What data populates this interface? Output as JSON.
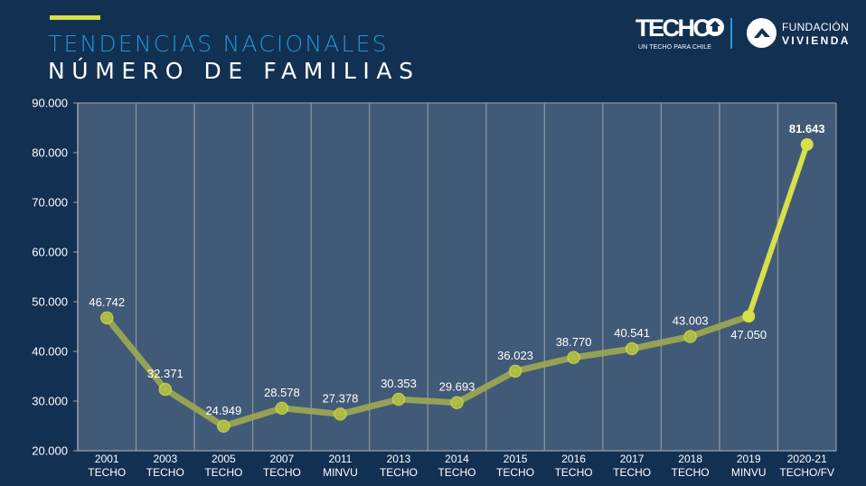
{
  "header": {
    "title_line1": "TENDENCIAS NACIONALES",
    "title_line2": "NÚMERO DE FAMILIAS",
    "accent_color": "#d7e04a",
    "title_color": "#2396d8"
  },
  "logos": {
    "techo": {
      "name": "TECHO",
      "tagline": "UN TECHO PARA CHILE"
    },
    "fundacion": {
      "line1": "FUNDACIÓN",
      "line2": "VIVIENDA"
    }
  },
  "chart_data": {
    "type": "line",
    "title": "Número de familias",
    "xlabel": "",
    "ylabel": "",
    "ylim": [
      20000,
      90000
    ],
    "yticks": [
      20000,
      30000,
      40000,
      50000,
      60000,
      70000,
      80000,
      90000
    ],
    "ytick_labels": [
      "20.000",
      "30.000",
      "40.000",
      "50.000",
      "60.000",
      "70.000",
      "80.000",
      "90.000"
    ],
    "grid": "vertical",
    "legend": "none",
    "categories": [
      {
        "year": "2001",
        "source": "TECHO"
      },
      {
        "year": "2003",
        "source": "TECHO"
      },
      {
        "year": "2005",
        "source": "TECHO"
      },
      {
        "year": "2007",
        "source": "TECHO"
      },
      {
        "year": "2011",
        "source": "MINVU"
      },
      {
        "year": "2013",
        "source": "TECHO"
      },
      {
        "year": "2014",
        "source": "TECHO"
      },
      {
        "year": "2015",
        "source": "TECHO"
      },
      {
        "year": "2016",
        "source": "TECHO"
      },
      {
        "year": "2017",
        "source": "TECHO"
      },
      {
        "year": "2018",
        "source": "TECHO"
      },
      {
        "year": "2019",
        "source": "MINVU"
      },
      {
        "year": "2020-21",
        "source": "TECHO/FV"
      }
    ],
    "series": [
      {
        "name": "Número de familias",
        "values": [
          46742,
          32371,
          24949,
          28578,
          27378,
          30353,
          29693,
          36023,
          38770,
          40541,
          43003,
          47050,
          81643
        ],
        "labels": [
          "46.742",
          "32.371",
          "24.949",
          "28.578",
          "27.378",
          "30.353",
          "29.693",
          "36.023",
          "38.770",
          "40.541",
          "43.003",
          "47.050",
          "81.643"
        ],
        "color": "#9aa754",
        "highlight_color": "#d7e04a",
        "highlight_from_index": 11
      }
    ],
    "plot_background": "#415a77",
    "gridline_color": "#8a94a0"
  }
}
